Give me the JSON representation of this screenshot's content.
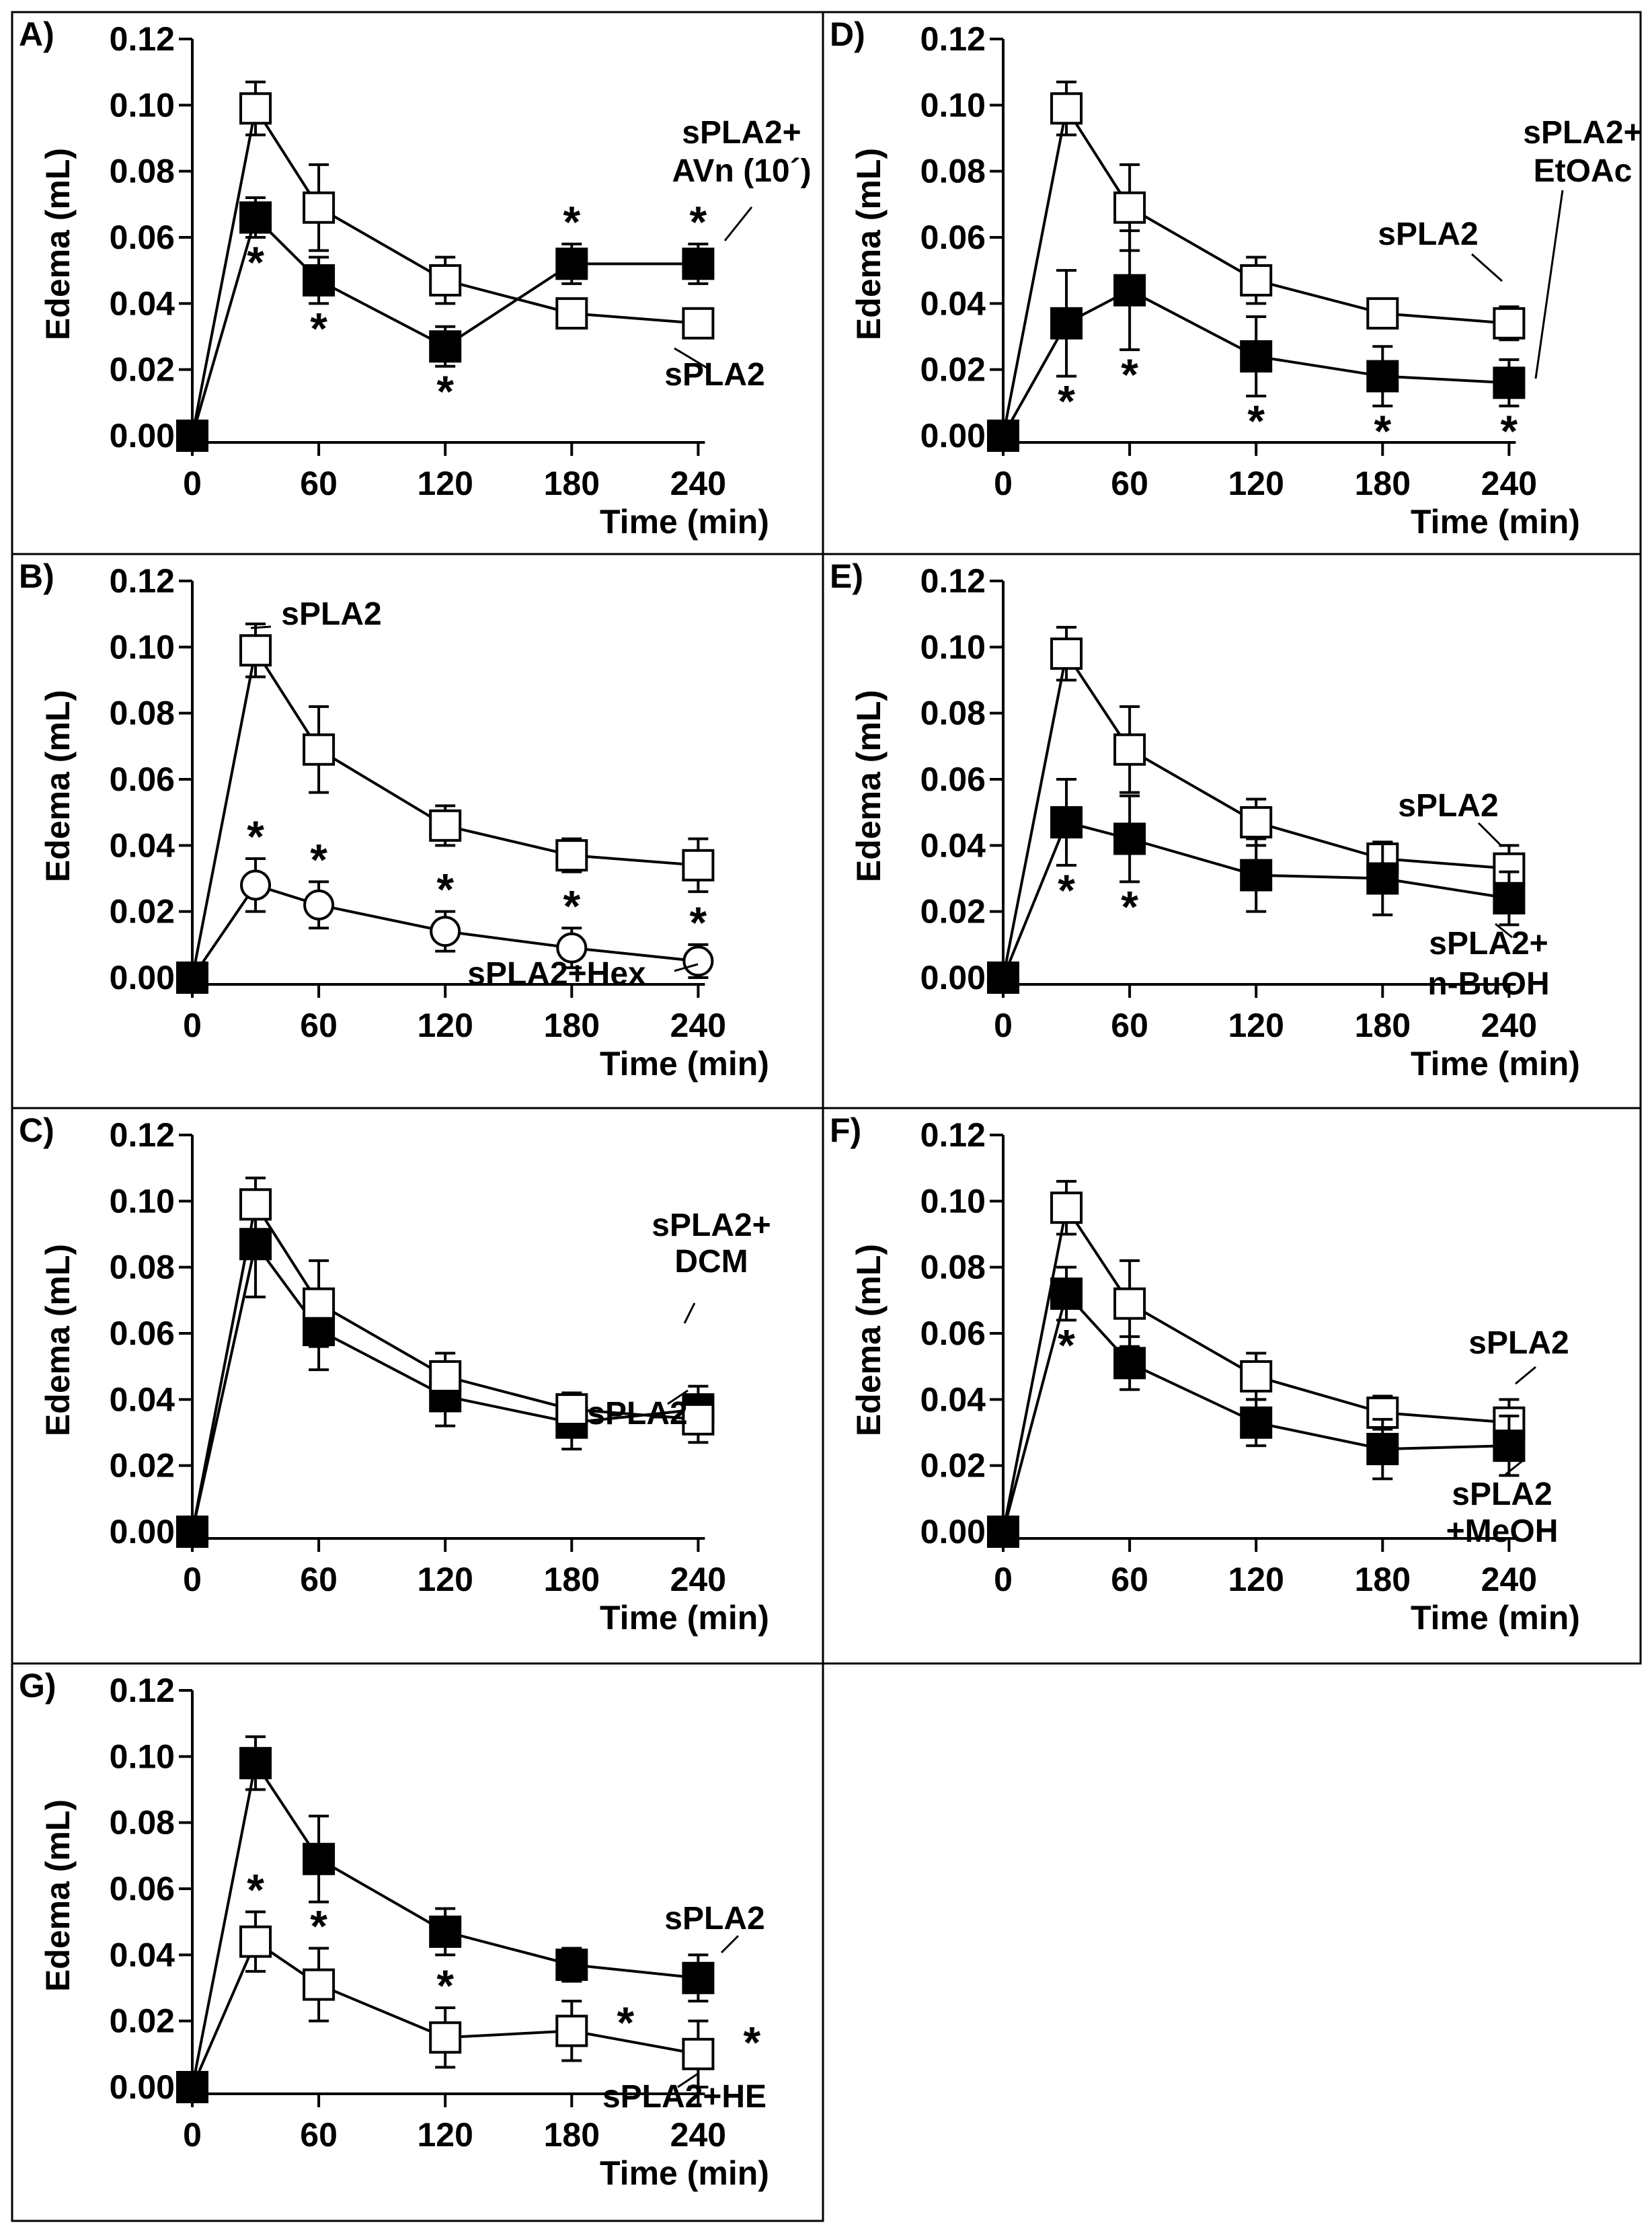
{
  "figure": {
    "common": {
      "ylabel": "Edema (mL)",
      "xlabel": "Time (min)",
      "xticks": [
        0,
        60,
        120,
        180,
        240
      ],
      "yticks": [
        "0.00",
        "0.02",
        "0.04",
        "0.06",
        "0.08",
        "0.10",
        "0.12"
      ],
      "marker_colors": {
        "open": "#ffffff",
        "filled": "#000000",
        "edge": "#000000"
      }
    }
  },
  "chart_data": [
    {
      "panel": "A)",
      "type": "line",
      "xlabel": "Time (min)",
      "ylabel": "Edema (mL)",
      "xlim": [
        0,
        240
      ],
      "ylim": [
        0,
        0.12
      ],
      "x": [
        0,
        30,
        60,
        120,
        180,
        240
      ],
      "series": [
        {
          "marker": "open-square",
          "values": [
            0.0,
            0.099,
            0.069,
            0.047,
            0.037,
            0.034
          ],
          "errors": [
            0,
            0.008,
            0.013,
            0.007,
            0.004,
            0.004
          ],
          "label": "sPLA2"
        },
        {
          "marker": "filled-square",
          "values": [
            0.0,
            0.066,
            0.047,
            0.027,
            0.052,
            0.052
          ],
          "errors": [
            0,
            0.006,
            0.007,
            0.006,
            0.006,
            0.006
          ],
          "label": "sPLA2+\nAVn (10´)",
          "significant": [
            1,
            2,
            3,
            4,
            5
          ]
        }
      ]
    },
    {
      "panel": "B)",
      "type": "line",
      "xlabel": "Time (min)",
      "ylabel": "Edema (mL)",
      "xlim": [
        0,
        240
      ],
      "ylim": [
        0,
        0.12
      ],
      "x": [
        0,
        30,
        60,
        120,
        180,
        240
      ],
      "series": [
        {
          "marker": "open-square",
          "values": [
            0.0,
            0.099,
            0.069,
            0.046,
            0.037,
            0.034
          ],
          "errors": [
            0,
            0.008,
            0.013,
            0.006,
            0.005,
            0.008
          ],
          "label": "sPLA2"
        },
        {
          "marker": "open-circle",
          "values": [
            0.0,
            0.028,
            0.022,
            0.014,
            0.009,
            0.005
          ],
          "errors": [
            0,
            0.008,
            0.007,
            0.006,
            0.006,
            0.005
          ],
          "label": "sPLA2+Hex",
          "significant": [
            1,
            2,
            3,
            4,
            5
          ]
        }
      ]
    },
    {
      "panel": "C)",
      "type": "line",
      "xlabel": "Time (min)",
      "ylabel": "Edema (mL)",
      "xlim": [
        0,
        240
      ],
      "ylim": [
        0,
        0.12
      ],
      "x": [
        0,
        30,
        60,
        120,
        180,
        240
      ],
      "series": [
        {
          "marker": "filled-square",
          "values": [
            0.0,
            0.087,
            0.061,
            0.041,
            0.033,
            0.037
          ],
          "errors": [
            0,
            0.016,
            0.012,
            0.009,
            0.008,
            0.007
          ],
          "label": "sPLA2+\nDCM"
        },
        {
          "marker": "open-square",
          "values": [
            0.0,
            0.099,
            0.069,
            0.047,
            0.037,
            0.034
          ],
          "errors": [
            0,
            0.008,
            0.013,
            0.007,
            0.005,
            0.007
          ],
          "label": "sPLA2"
        }
      ]
    },
    {
      "panel": "D)",
      "type": "line",
      "xlabel": "Time (min)",
      "ylabel": "Edema (mL)",
      "xlim": [
        0,
        240
      ],
      "ylim": [
        0,
        0.12
      ],
      "x": [
        0,
        30,
        60,
        120,
        180,
        240
      ],
      "series": [
        {
          "marker": "open-square",
          "values": [
            0.0,
            0.099,
            0.069,
            0.047,
            0.037,
            0.034
          ],
          "errors": [
            0,
            0.008,
            0.013,
            0.007,
            0.004,
            0.005
          ],
          "label": "sPLA2"
        },
        {
          "marker": "filled-square",
          "values": [
            0.0,
            0.034,
            0.044,
            0.024,
            0.018,
            0.016
          ],
          "errors": [
            0,
            0.016,
            0.018,
            0.012,
            0.009,
            0.007
          ],
          "label": "sPLA2+\nEtOAc",
          "significant": [
            1,
            2,
            3,
            4,
            5
          ]
        }
      ]
    },
    {
      "panel": "E)",
      "type": "line",
      "xlabel": "Time (min)",
      "ylabel": "Edema (mL)",
      "xlim": [
        0,
        240
      ],
      "ylim": [
        0,
        0.12
      ],
      "x": [
        0,
        30,
        60,
        120,
        180,
        240
      ],
      "series": [
        {
          "marker": "open-square",
          "values": [
            0.0,
            0.098,
            0.069,
            0.047,
            0.036,
            0.033
          ],
          "errors": [
            0,
            0.008,
            0.013,
            0.007,
            0.005,
            0.007
          ],
          "label": "sPLA2"
        },
        {
          "marker": "filled-square",
          "values": [
            0.0,
            0.047,
            0.042,
            0.031,
            0.03,
            0.024
          ],
          "errors": [
            0,
            0.013,
            0.013,
            0.011,
            0.011,
            0.008
          ],
          "label": "sPLA2+\nn-BuOH",
          "significant": [
            1,
            2
          ]
        }
      ]
    },
    {
      "panel": "F)",
      "type": "line",
      "xlabel": "Time (min)",
      "ylabel": "Edema (mL)",
      "xlim": [
        0,
        240
      ],
      "ylim": [
        0,
        0.12
      ],
      "x": [
        0,
        30,
        60,
        120,
        180,
        240
      ],
      "series": [
        {
          "marker": "open-square",
          "values": [
            0.0,
            0.098,
            0.069,
            0.047,
            0.036,
            0.033
          ],
          "errors": [
            0,
            0.008,
            0.013,
            0.007,
            0.005,
            0.007
          ],
          "label": "sPLA2"
        },
        {
          "marker": "filled-square",
          "values": [
            0.0,
            0.072,
            0.051,
            0.033,
            0.025,
            0.026
          ],
          "errors": [
            0,
            0.008,
            0.008,
            0.007,
            0.009,
            0.009
          ],
          "label": "sPLA2\n+MeOH",
          "significant": [
            1
          ]
        }
      ]
    },
    {
      "panel": "G)",
      "type": "line",
      "xlabel": "Time (min)",
      "ylabel": "Edema (mL)",
      "xlim": [
        0,
        240
      ],
      "ylim": [
        0,
        0.12
      ],
      "x": [
        0,
        30,
        60,
        120,
        180,
        240
      ],
      "series": [
        {
          "marker": "filled-square",
          "values": [
            0.0,
            0.098,
            0.069,
            0.047,
            0.037,
            0.033
          ],
          "errors": [
            0,
            0.008,
            0.013,
            0.007,
            0.005,
            0.007
          ],
          "label": "sPLA2"
        },
        {
          "marker": "open-square",
          "values": [
            0.0,
            0.044,
            0.031,
            0.015,
            0.017,
            0.01
          ],
          "errors": [
            0,
            0.009,
            0.011,
            0.009,
            0.009,
            0.01
          ],
          "label": "sPLA2+HE",
          "significant": [
            1,
            2,
            3,
            4,
            5
          ]
        }
      ]
    }
  ]
}
